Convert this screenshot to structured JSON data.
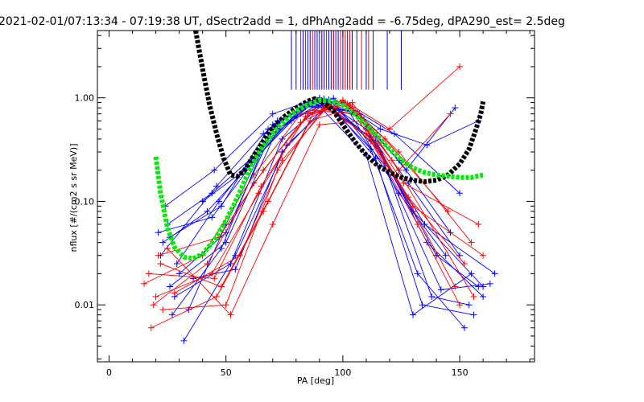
{
  "chart_data": {
    "type": "line",
    "title": "2021-02-01/07:13:34 - 07:19:38 UT, dSectr2add = 1, dPhAng2add = -6.75deg, dPA290_est=    2.5deg",
    "xlabel": "PA [deg]",
    "ylabel": "nflux [#/(cm2 s sr MeV)]",
    "xlim": [
      -5,
      182
    ],
    "ylim_log10": [
      -2.55,
      0.65
    ],
    "x_ticks": [
      0,
      50,
      100,
      150
    ],
    "x_tick_labels": [
      "0",
      "50",
      "100",
      "150"
    ],
    "y_ticks": [
      0.01,
      0.1,
      1.0
    ],
    "y_tick_labels": [
      "0.01",
      "0.10",
      "1.00"
    ],
    "y_scale": "log",
    "colors": {
      "blue": "#0000ff",
      "red": "#ff0000",
      "black": "#000000",
      "green": "#00ee00"
    },
    "fit_curves": [
      {
        "color": "black",
        "style": "thick-dotted",
        "points": [
          [
            37,
            4.5
          ],
          [
            40,
            1.9
          ],
          [
            43,
            0.85
          ],
          [
            46,
            0.45
          ],
          [
            49,
            0.26
          ],
          [
            52,
            0.18
          ],
          [
            55,
            0.175
          ],
          [
            58,
            0.2
          ],
          [
            62,
            0.28
          ],
          [
            66,
            0.38
          ],
          [
            70,
            0.52
          ],
          [
            75,
            0.66
          ],
          [
            80,
            0.8
          ],
          [
            85,
            0.93
          ],
          [
            88,
            0.98
          ],
          [
            92,
            0.9
          ],
          [
            96,
            0.75
          ],
          [
            100,
            0.55
          ],
          [
            105,
            0.38
          ],
          [
            110,
            0.28
          ],
          [
            115,
            0.22
          ],
          [
            120,
            0.19
          ],
          [
            125,
            0.17
          ],
          [
            130,
            0.16
          ],
          [
            135,
            0.155
          ],
          [
            140,
            0.16
          ],
          [
            145,
            0.18
          ],
          [
            150,
            0.23
          ],
          [
            154,
            0.32
          ],
          [
            157,
            0.5
          ],
          [
            159,
            0.7
          ],
          [
            160,
            0.92
          ]
        ]
      },
      {
        "color": "green",
        "style": "thick-dotted",
        "points": [
          [
            20,
            0.27
          ],
          [
            22,
            0.12
          ],
          [
            25,
            0.055
          ],
          [
            28,
            0.036
          ],
          [
            32,
            0.029
          ],
          [
            36,
            0.028
          ],
          [
            40,
            0.031
          ],
          [
            45,
            0.042
          ],
          [
            50,
            0.065
          ],
          [
            55,
            0.11
          ],
          [
            60,
            0.2
          ],
          [
            65,
            0.32
          ],
          [
            70,
            0.45
          ],
          [
            75,
            0.6
          ],
          [
            80,
            0.75
          ],
          [
            85,
            0.86
          ],
          [
            90,
            0.95
          ],
          [
            95,
            0.93
          ],
          [
            100,
            0.85
          ],
          [
            105,
            0.7
          ],
          [
            110,
            0.55
          ],
          [
            115,
            0.42
          ],
          [
            120,
            0.32
          ],
          [
            125,
            0.25
          ],
          [
            130,
            0.21
          ],
          [
            135,
            0.19
          ],
          [
            140,
            0.18
          ],
          [
            145,
            0.175
          ],
          [
            150,
            0.17
          ],
          [
            155,
            0.17
          ],
          [
            160,
            0.18
          ]
        ]
      }
    ],
    "vertical_markers": {
      "y_bottom": 1.2,
      "blue": [
        78,
        80,
        83,
        85,
        86,
        88,
        89,
        90,
        91,
        92,
        94,
        95,
        96,
        97,
        98,
        100,
        102,
        104,
        106,
        110,
        113,
        119,
        125
      ],
      "red": [
        82,
        84,
        87,
        91,
        93,
        96,
        99,
        101,
        103,
        108,
        111
      ]
    },
    "series": [
      {
        "color": "blue",
        "points": [
          [
            24,
            0.09
          ],
          [
            45,
            0.2
          ],
          [
            70,
            0.7
          ],
          [
            90,
            1.0
          ],
          [
            110,
            0.5
          ],
          [
            130,
            0.08
          ],
          [
            160,
            0.015
          ]
        ]
      },
      {
        "color": "blue",
        "points": [
          [
            26,
            0.045
          ],
          [
            48,
            0.09
          ],
          [
            68,
            0.5
          ],
          [
            88,
            0.95
          ],
          [
            112,
            0.42
          ],
          [
            135,
            0.06
          ],
          [
            165,
            0.02
          ]
        ]
      },
      {
        "color": "blue",
        "points": [
          [
            30,
            0.02
          ],
          [
            50,
            0.05
          ],
          [
            72,
            0.6
          ],
          [
            92,
            0.98
          ],
          [
            115,
            0.35
          ],
          [
            140,
            0.03
          ],
          [
            158,
            0.015
          ]
        ]
      },
      {
        "color": "blue",
        "points": [
          [
            22,
            0.03
          ],
          [
            46,
            0.14
          ],
          [
            66,
            0.45
          ],
          [
            86,
            0.9
          ],
          [
            108,
            0.65
          ],
          [
            128,
            0.15
          ],
          [
            150,
            0.03
          ]
        ]
      },
      {
        "color": "blue",
        "points": [
          [
            28,
            0.012
          ],
          [
            52,
            0.025
          ],
          [
            74,
            0.4
          ],
          [
            94,
            0.96
          ],
          [
            116,
            0.3
          ],
          [
            138,
            0.012
          ],
          [
            154,
            0.01
          ]
        ]
      },
      {
        "color": "blue",
        "points": [
          [
            25,
            0.06
          ],
          [
            44,
            0.12
          ],
          [
            64,
            0.3
          ],
          [
            84,
            0.85
          ],
          [
            104,
            0.75
          ],
          [
            124,
            0.25
          ],
          [
            146,
            0.05
          ]
        ]
      },
      {
        "color": "blue",
        "points": [
          [
            32,
            0.0045
          ],
          [
            54,
            0.03
          ],
          [
            76,
            0.35
          ],
          [
            96,
            0.92
          ],
          [
            118,
            0.22
          ],
          [
            142,
            0.014
          ],
          [
            163,
            0.016
          ]
        ]
      },
      {
        "color": "blue",
        "points": [
          [
            27,
            0.008
          ],
          [
            48,
            0.035
          ],
          [
            70,
            0.55
          ],
          [
            90,
            0.97
          ],
          [
            114,
            0.38
          ],
          [
            136,
            0.04
          ],
          [
            160,
            0.012
          ]
        ]
      },
      {
        "color": "blue",
        "points": [
          [
            23,
            0.04
          ],
          [
            42,
            0.08
          ],
          [
            62,
            0.25
          ],
          [
            82,
            0.8
          ],
          [
            100,
            0.9
          ],
          [
            122,
            0.45
          ],
          [
            150,
            0.12
          ]
        ]
      },
      {
        "color": "blue",
        "points": [
          [
            34,
            0.009
          ],
          [
            50,
            0.06
          ],
          [
            68,
            0.42
          ],
          [
            88,
            0.92
          ],
          [
            110,
            0.28
          ],
          [
            130,
            0.008
          ],
          [
            155,
            0.02
          ]
        ]
      },
      {
        "color": "blue",
        "points": [
          [
            29,
            0.025
          ],
          [
            47,
            0.1
          ],
          [
            67,
            0.38
          ],
          [
            87,
            0.88
          ],
          [
            107,
            0.7
          ],
          [
            127,
            0.2
          ],
          [
            148,
            0.8
          ]
        ]
      },
      {
        "color": "blue",
        "points": [
          [
            26,
            0.015
          ],
          [
            50,
            0.04
          ],
          [
            72,
            0.5
          ],
          [
            92,
            0.94
          ],
          [
            112,
            0.32
          ],
          [
            132,
            0.02
          ],
          [
            152,
            0.006
          ]
        ]
      },
      {
        "color": "blue",
        "points": [
          [
            40,
            0.1
          ],
          [
            58,
            0.2
          ],
          [
            78,
            0.6
          ],
          [
            96,
            0.99
          ],
          [
            116,
            0.5
          ],
          [
            136,
            0.35
          ],
          [
            158,
            0.6
          ]
        ]
      },
      {
        "color": "blue",
        "points": [
          [
            21,
            0.05
          ],
          [
            44,
            0.07
          ],
          [
            64,
            0.28
          ],
          [
            84,
            0.82
          ],
          [
            102,
            0.78
          ],
          [
            124,
            0.12
          ],
          [
            144,
            0.03
          ]
        ]
      },
      {
        "color": "blue",
        "points": [
          [
            36,
            0.018
          ],
          [
            54,
            0.022
          ],
          [
            74,
            0.3
          ],
          [
            94,
            0.9
          ],
          [
            114,
            0.26
          ],
          [
            134,
            0.01
          ],
          [
            156,
            0.008
          ]
        ]
      },
      {
        "color": "red",
        "points": [
          [
            15,
            0.016
          ],
          [
            40,
            0.03
          ],
          [
            62,
            0.18
          ],
          [
            82,
            0.7
          ],
          [
            100,
            0.95
          ],
          [
            120,
            0.5
          ],
          [
            150,
            2.0
          ]
        ]
      },
      {
        "color": "red",
        "points": [
          [
            18,
            0.006
          ],
          [
            46,
            0.012
          ],
          [
            66,
            0.08
          ],
          [
            86,
            0.6
          ],
          [
            104,
            0.8
          ],
          [
            124,
            0.3
          ],
          [
            155,
            0.04
          ]
        ]
      },
      {
        "color": "red",
        "points": [
          [
            20,
            0.012
          ],
          [
            44,
            0.02
          ],
          [
            64,
            0.12
          ],
          [
            84,
            0.66
          ],
          [
            102,
            0.88
          ],
          [
            122,
            0.18
          ],
          [
            148,
            0.015
          ]
        ]
      },
      {
        "color": "red",
        "points": [
          [
            22,
            0.025
          ],
          [
            48,
            0.015
          ],
          [
            68,
            0.1
          ],
          [
            88,
            0.75
          ],
          [
            106,
            0.7
          ],
          [
            126,
            0.15
          ],
          [
            158,
            0.06
          ]
        ]
      },
      {
        "color": "red",
        "points": [
          [
            19,
            0.01
          ],
          [
            42,
            0.025
          ],
          [
            62,
            0.15
          ],
          [
            82,
            0.58
          ],
          [
            100,
            0.92
          ],
          [
            118,
            0.4
          ],
          [
            145,
            0.08
          ]
        ]
      },
      {
        "color": "red",
        "points": [
          [
            25,
            0.035
          ],
          [
            52,
            0.008
          ],
          [
            70,
            0.06
          ],
          [
            90,
            0.55
          ],
          [
            108,
            0.6
          ],
          [
            128,
            0.11
          ],
          [
            152,
            0.025
          ]
        ]
      },
      {
        "color": "red",
        "points": [
          [
            17,
            0.02
          ],
          [
            45,
            0.018
          ],
          [
            65,
            0.14
          ],
          [
            85,
            0.7
          ],
          [
            103,
            0.85
          ],
          [
            121,
            0.25
          ],
          [
            156,
            0.012
          ]
        ]
      },
      {
        "color": "red",
        "points": [
          [
            23,
            0.009
          ],
          [
            50,
            0.01
          ],
          [
            72,
            0.2
          ],
          [
            92,
            0.8
          ],
          [
            110,
            0.45
          ],
          [
            130,
            0.09
          ],
          [
            160,
            0.03
          ]
        ]
      },
      {
        "color": "red",
        "points": [
          [
            28,
            0.013
          ],
          [
            56,
            0.03
          ],
          [
            74,
            0.25
          ],
          [
            94,
            0.85
          ],
          [
            112,
            0.38
          ],
          [
            132,
            0.06
          ],
          [
            150,
            0.01
          ]
        ]
      },
      {
        "color": "red",
        "points": [
          [
            21,
            0.03
          ],
          [
            47,
            0.045
          ],
          [
            66,
            0.2
          ],
          [
            86,
            0.72
          ],
          [
            104,
            0.9
          ],
          [
            124,
            0.2
          ],
          [
            146,
            0.7
          ]
        ]
      }
    ]
  }
}
